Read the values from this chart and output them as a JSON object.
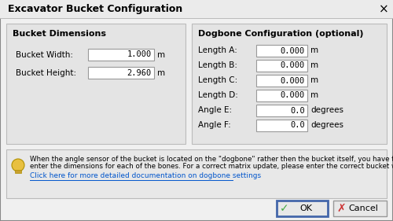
{
  "title": "Excavator Bucket Configuration",
  "dialog_bg": "#f0f0f0",
  "input_bg": "#ffffff",
  "panel_bg": "#e4e4e4",
  "info_bg": "#e8e8e8",
  "text_color": "#000000",
  "link_color": "#0055cc",
  "border_color": "#aaaaaa",
  "bucket_dimensions_label": "Bucket Dimensions",
  "dogbone_config_label": "Dogbone Configuration (optional)",
  "bucket_width_label": "Bucket Width:",
  "bucket_width_value": "1.000",
  "bucket_width_unit": "m",
  "bucket_height_label": "Bucket Height:",
  "bucket_height_value": "2.960",
  "bucket_height_unit": "m",
  "dogbone_fields": [
    {
      "label": "Length A:",
      "value": "0.000",
      "unit": "m"
    },
    {
      "label": "Length B:",
      "value": "0.000",
      "unit": "m"
    },
    {
      "label": "Length C:",
      "value": "0.000",
      "unit": "m"
    },
    {
      "label": "Length D:",
      "value": "0.000",
      "unit": "m"
    },
    {
      "label": "Angle E:",
      "value": "0.0",
      "unit": "degrees"
    },
    {
      "label": "Angle F:",
      "value": "0.0",
      "unit": "degrees"
    }
  ],
  "info_line1": "When the angle sensor of the bucket is located on the \"dogbone\" rather then the bucket itself, you have to",
  "info_line2": "enter the dimensions for each of the bones. For a correct matrix update, please enter the correct bucket width !",
  "link_text": "Click here for more detailed documentation on dogbone settings",
  "ok_label": "  OK",
  "cancel_label": "  Cancel"
}
